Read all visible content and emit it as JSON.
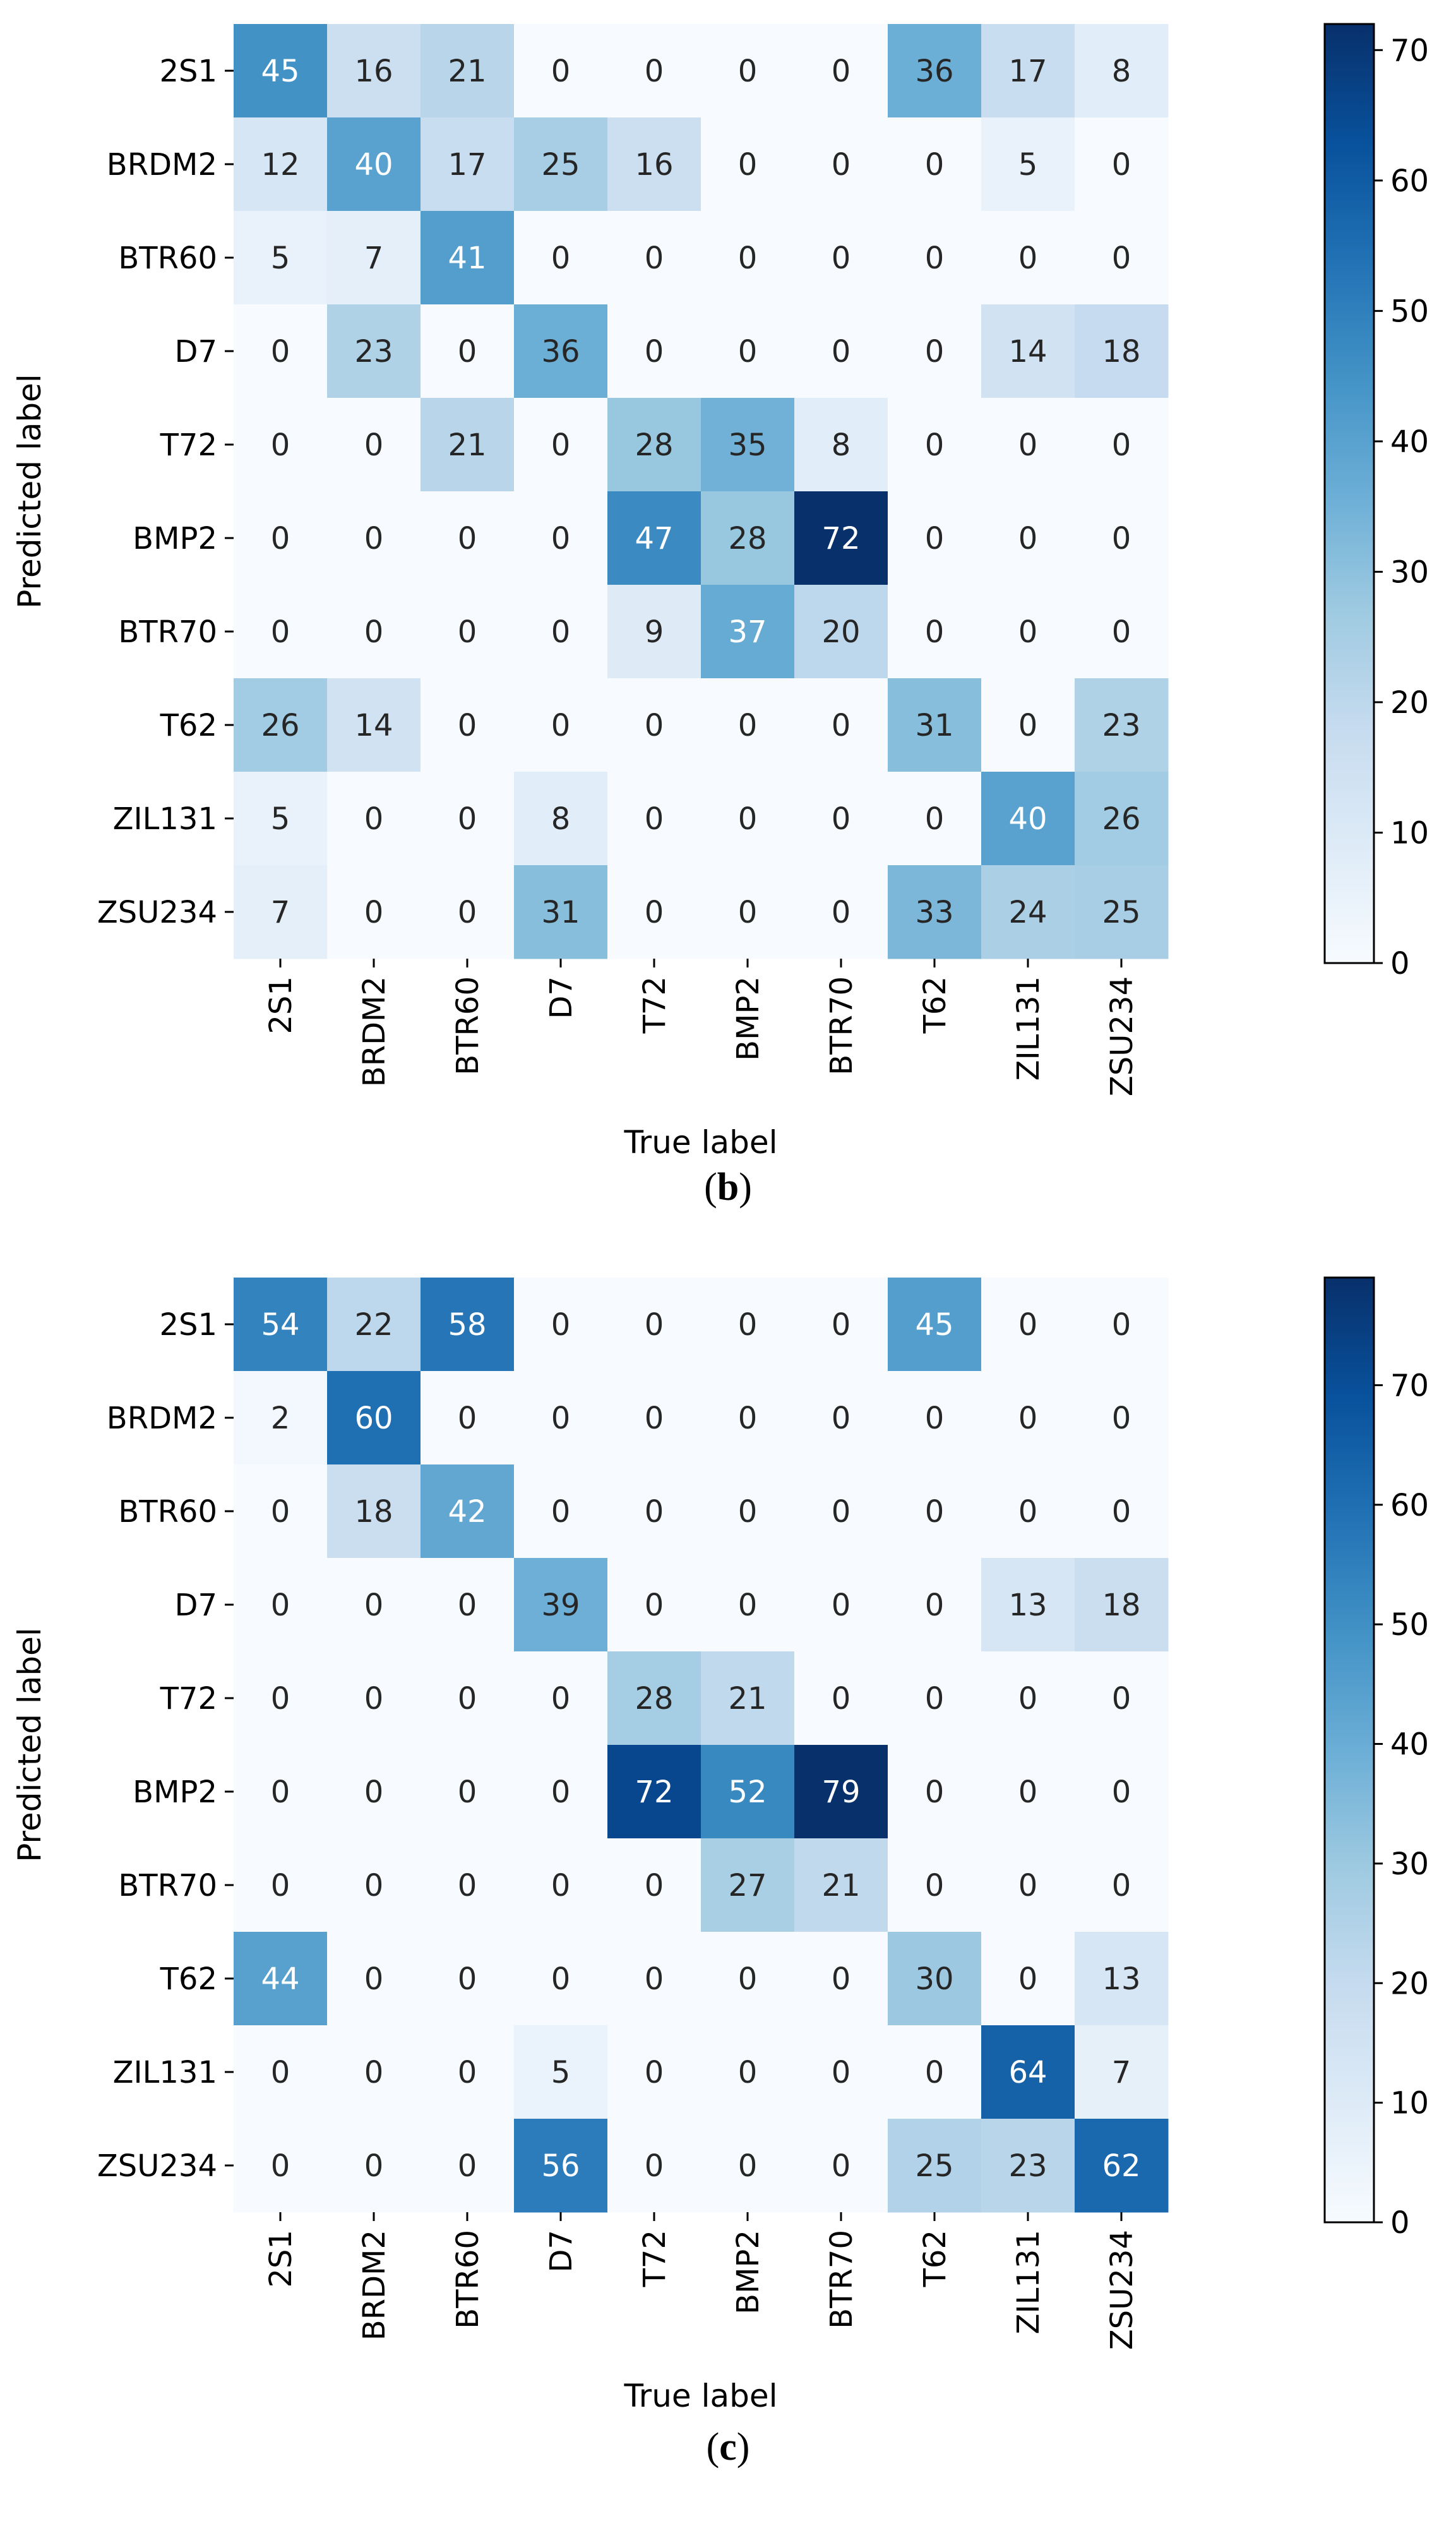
{
  "chart_data": [
    {
      "type": "heatmap",
      "caption_open": "(",
      "caption_letter": "b",
      "caption_close": ")",
      "xlabel": "True label",
      "ylabel": "Predicted label",
      "x_categories": [
        "2S1",
        "BRDM2",
        "BTR60",
        "D7",
        "T72",
        "BMP2",
        "BTR70",
        "T62",
        "ZIL131",
        "ZSU234"
      ],
      "y_categories": [
        "2S1",
        "BRDM2",
        "BTR60",
        "D7",
        "T72",
        "BMP2",
        "BTR70",
        "T62",
        "ZIL131",
        "ZSU234"
      ],
      "values": [
        [
          45,
          16,
          21,
          0,
          0,
          0,
          0,
          36,
          17,
          8
        ],
        [
          12,
          40,
          17,
          25,
          16,
          0,
          0,
          0,
          5,
          0
        ],
        [
          5,
          7,
          41,
          0,
          0,
          0,
          0,
          0,
          0,
          0
        ],
        [
          0,
          23,
          0,
          36,
          0,
          0,
          0,
          0,
          14,
          18
        ],
        [
          0,
          0,
          21,
          0,
          28,
          35,
          8,
          0,
          0,
          0
        ],
        [
          0,
          0,
          0,
          0,
          47,
          28,
          72,
          0,
          0,
          0
        ],
        [
          0,
          0,
          0,
          0,
          9,
          37,
          20,
          0,
          0,
          0
        ],
        [
          26,
          14,
          0,
          0,
          0,
          0,
          0,
          31,
          0,
          23
        ],
        [
          5,
          0,
          0,
          8,
          0,
          0,
          0,
          0,
          40,
          26
        ],
        [
          7,
          0,
          0,
          31,
          0,
          0,
          0,
          33,
          24,
          25
        ]
      ],
      "colorbar": {
        "min": 0,
        "max": 72,
        "ticks": [
          0,
          10,
          20,
          30,
          40,
          50,
          60,
          70
        ]
      },
      "colormap": "Blues"
    },
    {
      "type": "heatmap",
      "caption_open": "(",
      "caption_letter": "c",
      "caption_close": ")",
      "xlabel": "True label",
      "ylabel": "Predicted label",
      "x_categories": [
        "2S1",
        "BRDM2",
        "BTR60",
        "D7",
        "T72",
        "BMP2",
        "BTR70",
        "T62",
        "ZIL131",
        "ZSU234"
      ],
      "y_categories": [
        "2S1",
        "BRDM2",
        "BTR60",
        "D7",
        "T72",
        "BMP2",
        "BTR70",
        "T62",
        "ZIL131",
        "ZSU234"
      ],
      "values": [
        [
          54,
          22,
          58,
          0,
          0,
          0,
          0,
          45,
          0,
          0
        ],
        [
          2,
          60,
          0,
          0,
          0,
          0,
          0,
          0,
          0,
          0
        ],
        [
          0,
          18,
          42,
          0,
          0,
          0,
          0,
          0,
          0,
          0
        ],
        [
          0,
          0,
          0,
          39,
          0,
          0,
          0,
          0,
          13,
          18
        ],
        [
          0,
          0,
          0,
          0,
          28,
          21,
          0,
          0,
          0,
          0
        ],
        [
          0,
          0,
          0,
          0,
          72,
          52,
          79,
          0,
          0,
          0
        ],
        [
          0,
          0,
          0,
          0,
          0,
          27,
          21,
          0,
          0,
          0
        ],
        [
          44,
          0,
          0,
          0,
          0,
          0,
          0,
          30,
          0,
          13
        ],
        [
          0,
          0,
          0,
          5,
          0,
          0,
          0,
          0,
          64,
          7
        ],
        [
          0,
          0,
          0,
          56,
          0,
          0,
          0,
          25,
          23,
          62
        ]
      ],
      "colorbar": {
        "min": 0,
        "max": 79,
        "ticks": [
          0,
          10,
          20,
          30,
          40,
          50,
          60,
          70
        ]
      },
      "colormap": "Blues"
    }
  ]
}
